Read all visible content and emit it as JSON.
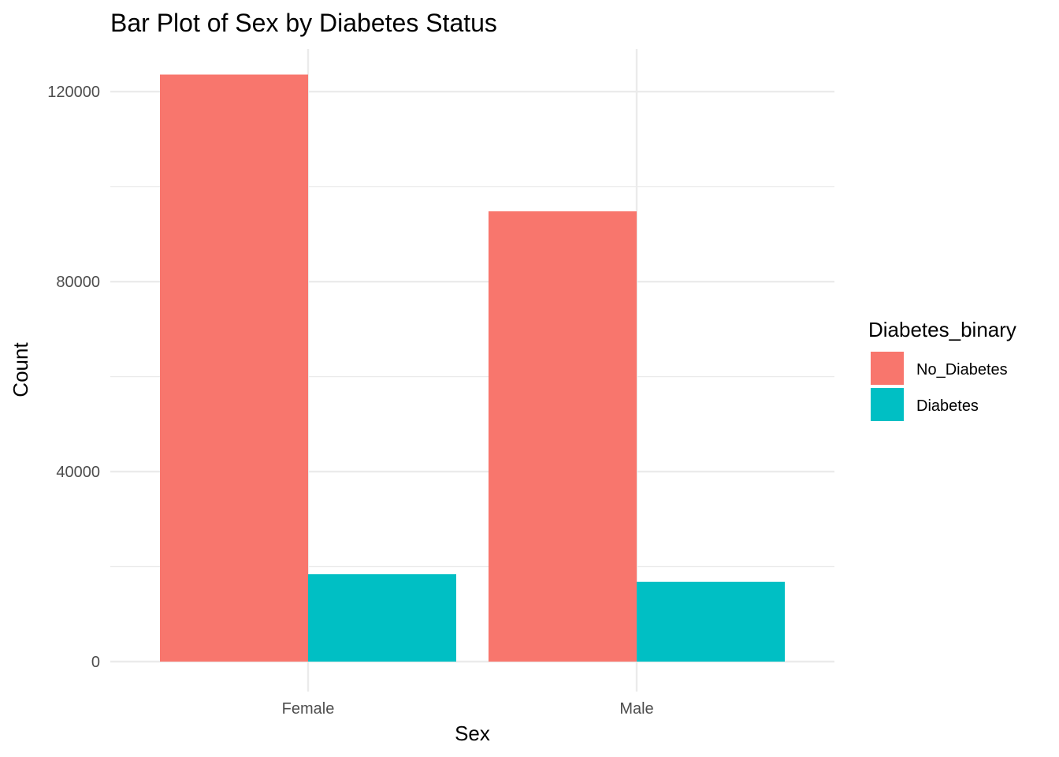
{
  "chart_data": {
    "type": "bar",
    "title": "Bar Plot of Sex by Diabetes Status",
    "xlabel": "Sex",
    "ylabel": "Count",
    "categories": [
      "Female",
      "Male"
    ],
    "series": [
      {
        "name": "No_Diabetes",
        "color": "#F8766D",
        "values": [
          123600,
          94800
        ]
      },
      {
        "name": "Diabetes",
        "color": "#00BFC4",
        "values": [
          18400,
          16800
        ]
      }
    ],
    "ylim": [
      0,
      129000
    ],
    "y_ticks": [
      "0",
      "40000",
      "80000",
      "120000"
    ],
    "y_tick_values": [
      0,
      40000,
      80000,
      120000
    ],
    "grid": true,
    "legend": {
      "title": "Diabetes_binary",
      "position": "right"
    }
  }
}
